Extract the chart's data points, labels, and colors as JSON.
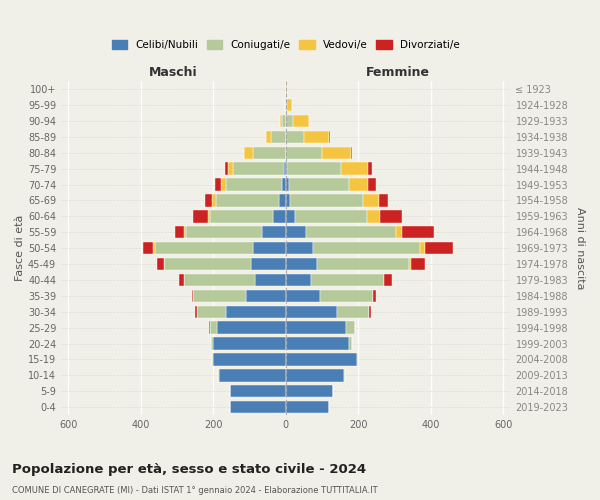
{
  "age_groups": [
    "100+",
    "95-99",
    "90-94",
    "85-89",
    "80-84",
    "75-79",
    "70-74",
    "65-69",
    "60-64",
    "55-59",
    "50-54",
    "45-49",
    "40-44",
    "35-39",
    "30-34",
    "25-29",
    "20-24",
    "15-19",
    "10-14",
    "5-9",
    "0-4"
  ],
  "birth_years": [
    "≤ 1923",
    "1924-1928",
    "1929-1933",
    "1934-1938",
    "1939-1943",
    "1944-1948",
    "1949-1953",
    "1954-1958",
    "1959-1963",
    "1964-1968",
    "1969-1973",
    "1974-1978",
    "1979-1983",
    "1984-1988",
    "1989-1993",
    "1994-1998",
    "1999-2003",
    "2004-2008",
    "2009-2013",
    "2014-2018",
    "2019-2023"
  ],
  "colors": {
    "celibe": "#4a7fb5",
    "coniugato": "#b5c99a",
    "vedovo": "#f5c542",
    "divorziato": "#cc2222"
  },
  "males": {
    "celibe": [
      0,
      0,
      0,
      0,
      0,
      5,
      10,
      18,
      35,
      65,
      90,
      95,
      85,
      110,
      165,
      190,
      200,
      200,
      185,
      155,
      155
    ],
    "coniugato": [
      0,
      2,
      10,
      40,
      90,
      140,
      155,
      175,
      175,
      210,
      270,
      240,
      195,
      145,
      80,
      20,
      5,
      3,
      2,
      0,
      0
    ],
    "vedovo": [
      0,
      0,
      5,
      15,
      25,
      15,
      15,
      10,
      5,
      5,
      5,
      0,
      0,
      0,
      0,
      0,
      0,
      0,
      0,
      0,
      0
    ],
    "divorziato": [
      0,
      0,
      0,
      0,
      0,
      8,
      15,
      20,
      40,
      25,
      30,
      20,
      15,
      5,
      5,
      2,
      0,
      0,
      0,
      0,
      0
    ]
  },
  "females": {
    "celibe": [
      0,
      0,
      0,
      0,
      0,
      3,
      8,
      12,
      25,
      55,
      75,
      85,
      70,
      95,
      140,
      165,
      175,
      195,
      160,
      130,
      120
    ],
    "coniugato": [
      0,
      3,
      20,
      50,
      100,
      150,
      165,
      200,
      200,
      250,
      295,
      255,
      200,
      145,
      90,
      25,
      8,
      3,
      2,
      0,
      0
    ],
    "vedovo": [
      2,
      15,
      45,
      70,
      80,
      75,
      55,
      45,
      35,
      15,
      15,
      5,
      2,
      0,
      0,
      0,
      0,
      0,
      0,
      0,
      0
    ],
    "divorziato": [
      0,
      0,
      0,
      2,
      3,
      10,
      20,
      25,
      60,
      90,
      75,
      40,
      20,
      10,
      5,
      0,
      0,
      0,
      0,
      0,
      0
    ]
  },
  "title_main": "Popolazione per età, sesso e stato civile - 2024",
  "title_sub": "COMUNE DI CANEGRATE (MI) - Dati ISTAT 1° gennaio 2024 - Elaborazione TUTTITALIA.IT",
  "header_left": "Maschi",
  "header_right": "Femmine",
  "ylabel_left": "Fasce di età",
  "ylabel_right": "Anni di nascita",
  "xlim": 620,
  "xticks": [
    -600,
    -400,
    -200,
    0,
    200,
    400,
    600
  ],
  "legend_labels": [
    "Celibi/Nubili",
    "Coniugati/e",
    "Vedovi/e",
    "Divorziati/e"
  ],
  "background_color": "#f0f0e8"
}
